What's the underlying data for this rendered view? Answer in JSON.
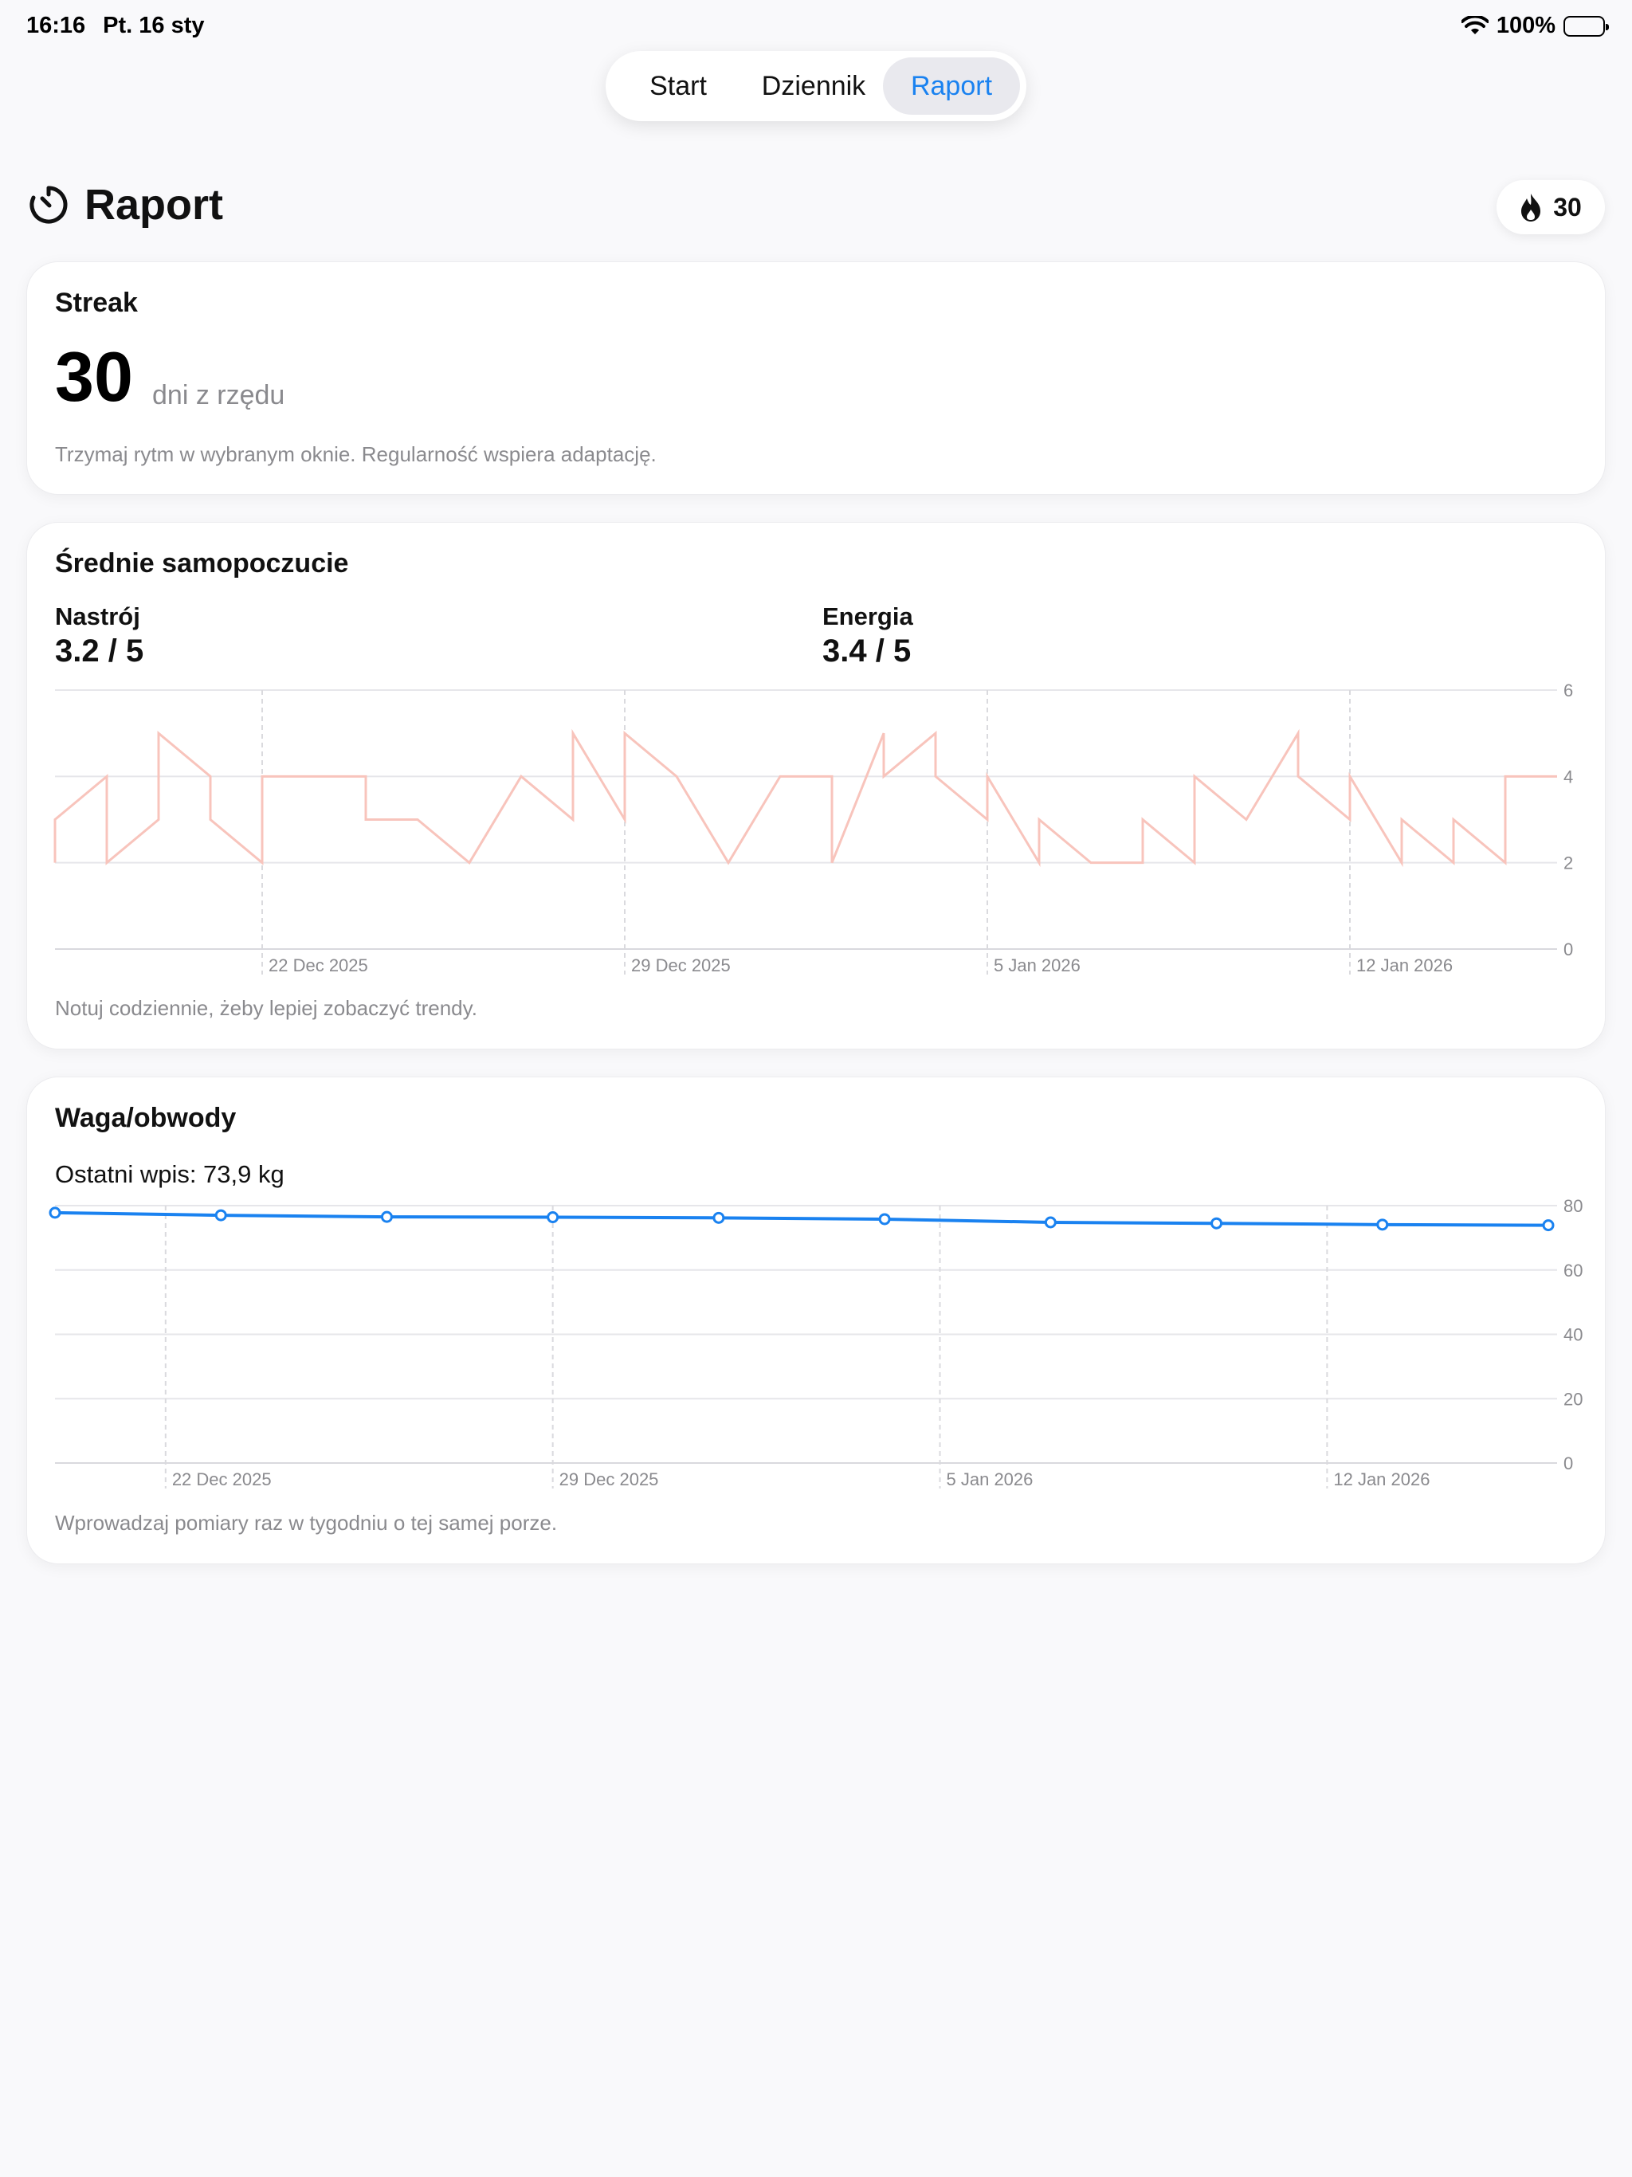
{
  "status_bar": {
    "time": "16:16",
    "date": "Pt. 16 sty",
    "battery": "100%"
  },
  "tabs": [
    {
      "label": "Start",
      "selected": false
    },
    {
      "label": "Dziennik",
      "selected": false
    },
    {
      "label": "Raport",
      "selected": true
    }
  ],
  "header": {
    "title": "Raport",
    "icon": "timer-icon",
    "streak_badge": "30",
    "streak_icon": "flame-icon"
  },
  "streak_card": {
    "title": "Streak",
    "value": "30",
    "unit": "dni z rzędu",
    "note": "Trzymaj rytm w wybranym oknie. Regularność wspiera adaptację."
  },
  "wellbeing_card": {
    "title": "Średnie samopoczucie",
    "mood_label": "Nastrój",
    "mood_value": "3.2 / 5",
    "energy_label": "Energia",
    "energy_value": "3.4 / 5",
    "note": "Notuj codziennie, żeby lepiej zobaczyć trendy."
  },
  "weight_card": {
    "title": "Waga/obwody",
    "last_entry": "Ostatni wpis: 73,9 kg",
    "note": "Wprowadzaj pomiary raz w tygodniu o tej samej porze."
  },
  "colors": {
    "accent": "#1a82f0",
    "mood_line": "#f8c4bc",
    "weight_line": "#1a82f0"
  },
  "chart_data": [
    {
      "type": "line",
      "title": "",
      "x_ticks": [
        "22 Dec 2025",
        "29 Dec 2025",
        "5 Jan 2026",
        "12 Jan 2026"
      ],
      "y_ticks": [
        0,
        2,
        4,
        6
      ],
      "ylim": [
        0,
        6
      ],
      "xlim": [
        "2025-12-18",
        "2026-01-16"
      ],
      "grid": true,
      "series": [
        {
          "color": "#f8c4bc",
          "x": [
            "2025-12-18",
            "2025-12-18",
            "2025-12-19",
            "2025-12-19",
            "2025-12-20",
            "2025-12-20",
            "2025-12-21",
            "2025-12-21",
            "2025-12-22",
            "2025-12-22",
            "2025-12-23",
            "2025-12-24",
            "2025-12-24",
            "2025-12-25",
            "2025-12-26",
            "2025-12-27",
            "2025-12-28",
            "2025-12-28",
            "2025-12-29",
            "2025-12-29",
            "2025-12-30",
            "2025-12-31",
            "2025-12-31",
            "2026-01-01",
            "2026-01-02",
            "2026-01-02",
            "2026-01-03",
            "2026-01-03",
            "2026-01-04",
            "2026-01-04",
            "2026-01-05",
            "2026-01-05",
            "2026-01-06",
            "2026-01-06",
            "2026-01-07",
            "2026-01-08",
            "2026-01-08",
            "2026-01-09",
            "2026-01-09",
            "2026-01-10",
            "2026-01-11",
            "2026-01-11",
            "2026-01-12",
            "2026-01-12",
            "2026-01-13",
            "2026-01-13",
            "2026-01-14",
            "2026-01-14",
            "2026-01-15",
            "2026-01-15",
            "2026-01-16"
          ],
          "y": [
            2,
            3,
            4,
            2,
            3,
            5,
            4,
            3,
            2,
            4,
            4,
            4,
            3,
            3,
            2,
            4,
            3,
            5,
            3,
            5,
            4,
            2,
            2,
            4,
            4,
            2,
            5,
            4,
            5,
            4,
            3,
            4,
            2,
            3,
            2,
            2,
            3,
            2,
            4,
            3,
            5,
            4,
            3,
            4,
            2,
            3,
            2,
            3,
            2,
            4,
            4
          ]
        }
      ]
    },
    {
      "type": "line",
      "title": "",
      "x_ticks": [
        "22 Dec 2025",
        "29 Dec 2025",
        "5 Jan 2026",
        "12 Jan 2026"
      ],
      "y_ticks": [
        0,
        20,
        40,
        60,
        80
      ],
      "ylim": [
        0,
        80
      ],
      "xlim": [
        "2025-12-20",
        "2026-01-16"
      ],
      "grid": true,
      "series": [
        {
          "color": "#1a82f0",
          "markers": true,
          "x": [
            "2025-12-20",
            "2025-12-23",
            "2025-12-26",
            "2025-12-29",
            "2026-01-01",
            "2026-01-04",
            "2026-01-07",
            "2026-01-10",
            "2026-01-13",
            "2026-01-16"
          ],
          "y": [
            77.8,
            77.0,
            76.5,
            76.4,
            76.2,
            75.8,
            74.8,
            74.5,
            74.1,
            73.9
          ]
        }
      ]
    }
  ]
}
